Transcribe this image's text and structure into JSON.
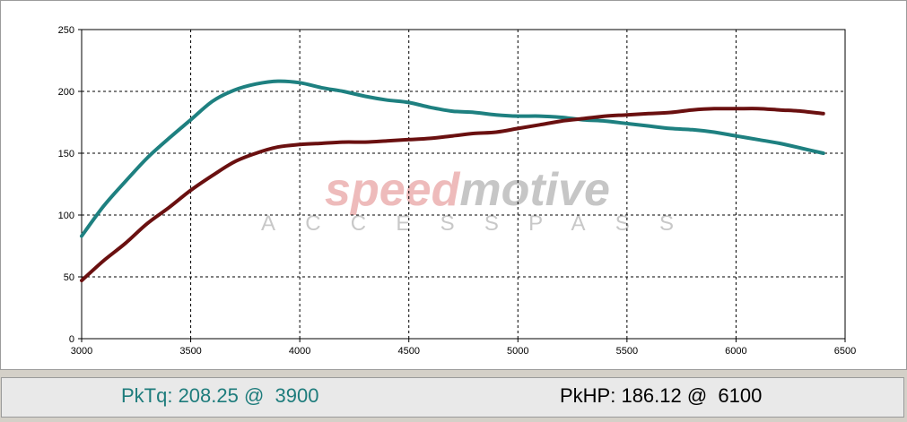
{
  "chart_data": {
    "type": "line",
    "xlim": [
      3000,
      6500
    ],
    "ylim": [
      0,
      250
    ],
    "x_ticks": [
      3000,
      3500,
      4000,
      4500,
      5000,
      5500,
      6000,
      6500
    ],
    "y_ticks": [
      0,
      50,
      100,
      150,
      200,
      250
    ],
    "grid": true,
    "series": [
      {
        "color": "#1e8080",
        "points": [
          [
            3000,
            83
          ],
          [
            3100,
            107
          ],
          [
            3200,
            127
          ],
          [
            3300,
            146
          ],
          [
            3400,
            162
          ],
          [
            3500,
            177
          ],
          [
            3600,
            192
          ],
          [
            3700,
            201
          ],
          [
            3800,
            206
          ],
          [
            3900,
            208.25
          ],
          [
            4000,
            207
          ],
          [
            4100,
            203
          ],
          [
            4200,
            200
          ],
          [
            4300,
            196
          ],
          [
            4400,
            193
          ],
          [
            4500,
            191
          ],
          [
            4600,
            187
          ],
          [
            4700,
            184
          ],
          [
            4800,
            183
          ],
          [
            4900,
            181
          ],
          [
            5000,
            180
          ],
          [
            5100,
            180
          ],
          [
            5200,
            179
          ],
          [
            5300,
            177
          ],
          [
            5400,
            176
          ],
          [
            5500,
            174
          ],
          [
            5600,
            172
          ],
          [
            5700,
            170
          ],
          [
            5800,
            169
          ],
          [
            5900,
            167
          ],
          [
            6000,
            164
          ],
          [
            6100,
            161
          ],
          [
            6200,
            158
          ],
          [
            6300,
            154
          ],
          [
            6400,
            150
          ]
        ]
      },
      {
        "color": "#6a1010",
        "points": [
          [
            3000,
            47
          ],
          [
            3100,
            63
          ],
          [
            3200,
            77
          ],
          [
            3300,
            93
          ],
          [
            3400,
            106
          ],
          [
            3500,
            120
          ],
          [
            3600,
            132
          ],
          [
            3700,
            143
          ],
          [
            3800,
            150
          ],
          [
            3900,
            155
          ],
          [
            4000,
            157
          ],
          [
            4100,
            158
          ],
          [
            4200,
            159
          ],
          [
            4300,
            159
          ],
          [
            4400,
            160
          ],
          [
            4500,
            161
          ],
          [
            4600,
            162
          ],
          [
            4700,
            164
          ],
          [
            4800,
            166
          ],
          [
            4900,
            167
          ],
          [
            5000,
            170
          ],
          [
            5100,
            173
          ],
          [
            5200,
            176
          ],
          [
            5300,
            178
          ],
          [
            5400,
            180
          ],
          [
            5500,
            181
          ],
          [
            5600,
            182
          ],
          [
            5700,
            183
          ],
          [
            5800,
            185
          ],
          [
            5900,
            186
          ],
          [
            6000,
            186
          ],
          [
            6100,
            186.12
          ],
          [
            6200,
            185
          ],
          [
            6300,
            184
          ],
          [
            6400,
            182
          ]
        ]
      }
    ]
  },
  "watermark": {
    "brand_red": "speed",
    "brand_grey": "motive",
    "tagline": "ACCESSPASS",
    "red_color": "#eebbbb",
    "grey_color": "#c6c6c6"
  },
  "stats": {
    "pktq": "PkTq: 208.25 @  3900",
    "pkhp": "PkHP: 186.12 @  6100"
  }
}
